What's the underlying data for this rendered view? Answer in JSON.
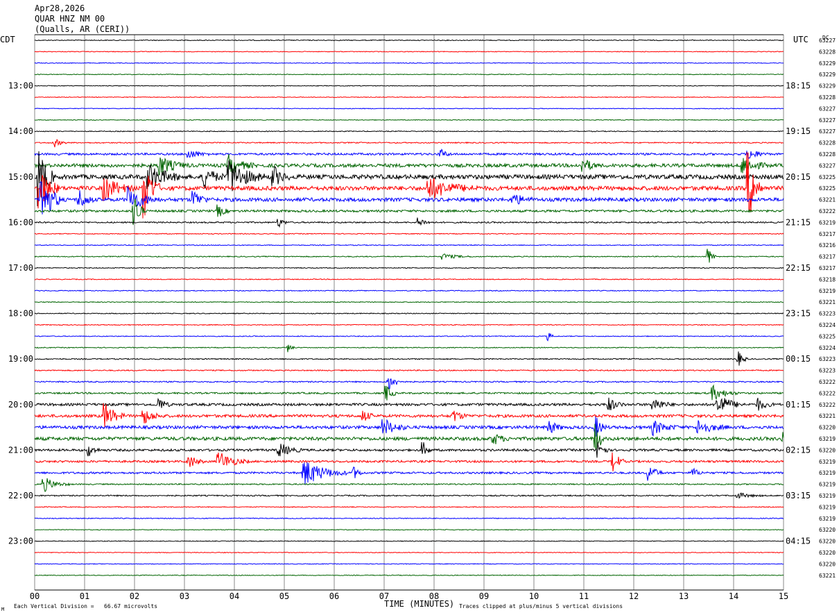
{
  "header": {
    "date": "Apr28,2026",
    "station": "QUAR HNZ NM 00",
    "location": "(Qualls, AR (CERI))"
  },
  "left_zone_label": "CDT",
  "right_zone_label": "UTC",
  "dc_label": "DC",
  "footer": {
    "x_axis_title": "TIME (MINUTES)",
    "scale_note": "Each Vertical Division =   66.67 microvolts",
    "clip_note": "Traces clipped at plus/minus 5 vertical divisions",
    "corner_mark": "M"
  },
  "colors": {
    "trace_cycle": [
      "#000000",
      "#ff0000",
      "#0000ff",
      "#006400"
    ],
    "grid": "#888888",
    "text": "#000000"
  },
  "chart_data": {
    "type": "line",
    "title": "QUAR HNZ NM 00",
    "xlabel": "TIME (MINUTES)",
    "xlim": [
      0,
      15
    ],
    "x_ticks": [
      "00",
      "01",
      "02",
      "03",
      "04",
      "05",
      "06",
      "07",
      "08",
      "09",
      "10",
      "11",
      "12",
      "13",
      "14",
      "15"
    ],
    "row_count": 48,
    "minutes_per_row": 15,
    "left_hour_labels": [
      {
        "row": 4,
        "label": "13:00"
      },
      {
        "row": 8,
        "label": "14:00"
      },
      {
        "row": 12,
        "label": "15:00"
      },
      {
        "row": 16,
        "label": "16:00"
      },
      {
        "row": 20,
        "label": "17:00"
      },
      {
        "row": 24,
        "label": "18:00"
      },
      {
        "row": 28,
        "label": "19:00"
      },
      {
        "row": 32,
        "label": "20:00"
      },
      {
        "row": 36,
        "label": "21:00"
      },
      {
        "row": 40,
        "label": "22:00"
      },
      {
        "row": 44,
        "label": "23:00"
      }
    ],
    "right_hour_labels": [
      {
        "row": 4,
        "label": "18:15"
      },
      {
        "row": 8,
        "label": "19:15"
      },
      {
        "row": 12,
        "label": "20:15"
      },
      {
        "row": 16,
        "label": "21:15"
      },
      {
        "row": 20,
        "label": "22:15"
      },
      {
        "row": 24,
        "label": "23:15"
      },
      {
        "row": 28,
        "label": "00:15"
      },
      {
        "row": 32,
        "label": "01:15"
      },
      {
        "row": 36,
        "label": "02:15"
      },
      {
        "row": 40,
        "label": "03:15"
      },
      {
        "row": 44,
        "label": "04:15"
      }
    ],
    "dc_offsets": [
      "63227",
      "63228",
      "63229",
      "63229",
      "63229",
      "63228",
      "63227",
      "63227",
      "63227",
      "63228",
      "63228",
      "63227",
      "63225",
      "63225",
      "63221",
      "63222",
      "63219",
      "63217",
      "63216",
      "63217",
      "63217",
      "63218",
      "63219",
      "63221",
      "63223",
      "63224",
      "63225",
      "63224",
      "63223",
      "63223",
      "63222",
      "63222",
      "63222",
      "63221",
      "63220",
      "63219",
      "63220",
      "63219",
      "63219",
      "63219",
      "63219",
      "63219",
      "63219",
      "63220",
      "63220",
      "63220",
      "63220",
      "63221"
    ],
    "noise_level": [
      0.6,
      0.5,
      0.5,
      0.5,
      0.5,
      0.5,
      0.5,
      0.5,
      0.6,
      0.8,
      1.5,
      2.5,
      3.2,
      3.0,
      2.6,
      1.6,
      1.0,
      0.6,
      0.6,
      0.7,
      0.6,
      0.6,
      0.6,
      0.6,
      0.6,
      0.6,
      0.6,
      0.6,
      0.8,
      0.8,
      0.9,
      1.2,
      1.8,
      2.0,
      2.2,
      2.4,
      1.6,
      1.5,
      1.4,
      0.9,
      0.9,
      0.6,
      0.6,
      0.5,
      0.5,
      0.5,
      0.5,
      0.5
    ],
    "events": [
      {
        "row": 9,
        "minute": 0.4,
        "amp": 6,
        "dur": 0.25
      },
      {
        "row": 10,
        "minute": 3.1,
        "amp": 6,
        "dur": 0.4
      },
      {
        "row": 10,
        "minute": 8.15,
        "amp": 6,
        "dur": 0.2
      },
      {
        "row": 10,
        "minute": 14.3,
        "amp": 8,
        "dur": 0.4
      },
      {
        "row": 11,
        "minute": 2.5,
        "amp": 14,
        "dur": 0.6
      },
      {
        "row": 11,
        "minute": 3.9,
        "amp": 14,
        "dur": 0.5
      },
      {
        "row": 11,
        "minute": 11.0,
        "amp": 10,
        "dur": 0.3
      },
      {
        "row": 11,
        "minute": 14.2,
        "amp": 12,
        "dur": 0.5
      },
      {
        "row": 12,
        "minute": 0.1,
        "amp": 45,
        "dur": 0.3
      },
      {
        "row": 12,
        "minute": 2.3,
        "amp": 18,
        "dur": 0.7
      },
      {
        "row": 12,
        "minute": 3.4,
        "amp": 16,
        "dur": 0.4
      },
      {
        "row": 12,
        "minute": 3.9,
        "amp": 26,
        "dur": 0.7
      },
      {
        "row": 12,
        "minute": 4.8,
        "amp": 14,
        "dur": 0.3
      },
      {
        "row": 13,
        "minute": 0.1,
        "amp": 35,
        "dur": 0.4
      },
      {
        "row": 13,
        "minute": 1.4,
        "amp": 18,
        "dur": 0.6
      },
      {
        "row": 13,
        "minute": 2.2,
        "amp": 45,
        "dur": 0.3
      },
      {
        "row": 13,
        "minute": 7.9,
        "amp": 16,
        "dur": 1.0
      },
      {
        "row": 13,
        "minute": 14.3,
        "amp": 50,
        "dur": 0.3
      },
      {
        "row": 14,
        "minute": 0.15,
        "amp": 40,
        "dur": 0.4
      },
      {
        "row": 14,
        "minute": 0.9,
        "amp": 14,
        "dur": 0.3
      },
      {
        "row": 14,
        "minute": 1.9,
        "amp": 18,
        "dur": 0.6
      },
      {
        "row": 14,
        "minute": 3.2,
        "amp": 12,
        "dur": 0.3
      },
      {
        "row": 14,
        "minute": 9.6,
        "amp": 8,
        "dur": 0.4
      },
      {
        "row": 15,
        "minute": 2.0,
        "amp": 28,
        "dur": 0.2
      },
      {
        "row": 15,
        "minute": 3.7,
        "amp": 8,
        "dur": 0.2
      },
      {
        "row": 16,
        "minute": 4.9,
        "amp": 6,
        "dur": 0.2
      },
      {
        "row": 16,
        "minute": 7.7,
        "amp": 6,
        "dur": 0.3
      },
      {
        "row": 19,
        "minute": 8.2,
        "amp": 4,
        "dur": 0.6
      },
      {
        "row": 19,
        "minute": 13.5,
        "amp": 12,
        "dur": 0.15
      },
      {
        "row": 26,
        "minute": 10.3,
        "amp": 6,
        "dur": 0.1
      },
      {
        "row": 27,
        "minute": 5.1,
        "amp": 6,
        "dur": 0.1
      },
      {
        "row": 28,
        "minute": 14.1,
        "amp": 10,
        "dur": 0.2
      },
      {
        "row": 30,
        "minute": 7.1,
        "amp": 12,
        "dur": 0.3
      },
      {
        "row": 31,
        "minute": 7.05,
        "amp": 12,
        "dur": 0.2
      },
      {
        "row": 31,
        "minute": 13.6,
        "amp": 10,
        "dur": 0.5
      },
      {
        "row": 32,
        "minute": 2.5,
        "amp": 10,
        "dur": 0.2
      },
      {
        "row": 32,
        "minute": 11.5,
        "amp": 10,
        "dur": 0.3
      },
      {
        "row": 32,
        "minute": 12.4,
        "amp": 10,
        "dur": 0.4
      },
      {
        "row": 32,
        "minute": 13.7,
        "amp": 16,
        "dur": 0.5
      },
      {
        "row": 32,
        "minute": 14.5,
        "amp": 8,
        "dur": 0.3
      },
      {
        "row": 33,
        "minute": 1.4,
        "amp": 20,
        "dur": 0.4
      },
      {
        "row": 33,
        "minute": 2.2,
        "amp": 10,
        "dur": 0.4
      },
      {
        "row": 33,
        "minute": 6.6,
        "amp": 8,
        "dur": 0.2
      },
      {
        "row": 33,
        "minute": 8.4,
        "amp": 8,
        "dur": 0.3
      },
      {
        "row": 34,
        "minute": 7.0,
        "amp": 12,
        "dur": 0.5
      },
      {
        "row": 34,
        "minute": 10.3,
        "amp": 10,
        "dur": 0.3
      },
      {
        "row": 34,
        "minute": 11.25,
        "amp": 14,
        "dur": 0.2
      },
      {
        "row": 34,
        "minute": 12.4,
        "amp": 10,
        "dur": 0.5
      },
      {
        "row": 34,
        "minute": 13.3,
        "amp": 10,
        "dur": 0.6
      },
      {
        "row": 35,
        "minute": 11.25,
        "amp": 22,
        "dur": 0.15
      },
      {
        "row": 35,
        "minute": 9.2,
        "amp": 8,
        "dur": 0.3
      },
      {
        "row": 35,
        "minute": 15.0,
        "amp": 8,
        "dur": 0.1
      },
      {
        "row": 36,
        "minute": 1.1,
        "amp": 8,
        "dur": 0.2
      },
      {
        "row": 36,
        "minute": 4.9,
        "amp": 10,
        "dur": 0.5
      },
      {
        "row": 36,
        "minute": 7.8,
        "amp": 10,
        "dur": 0.15
      },
      {
        "row": 36,
        "minute": 11.3,
        "amp": 14,
        "dur": 0.2
      },
      {
        "row": 37,
        "minute": 3.1,
        "amp": 10,
        "dur": 0.3
      },
      {
        "row": 37,
        "minute": 3.7,
        "amp": 14,
        "dur": 0.6
      },
      {
        "row": 37,
        "minute": 11.6,
        "amp": 16,
        "dur": 0.2
      },
      {
        "row": 38,
        "minute": 5.4,
        "amp": 20,
        "dur": 0.9
      },
      {
        "row": 38,
        "minute": 6.4,
        "amp": 8,
        "dur": 0.2
      },
      {
        "row": 38,
        "minute": 12.3,
        "amp": 12,
        "dur": 0.3
      },
      {
        "row": 38,
        "minute": 13.2,
        "amp": 6,
        "dur": 0.2
      },
      {
        "row": 39,
        "minute": 0.2,
        "amp": 10,
        "dur": 0.5
      },
      {
        "row": 40,
        "minute": 14.1,
        "amp": 4,
        "dur": 0.5
      }
    ]
  }
}
